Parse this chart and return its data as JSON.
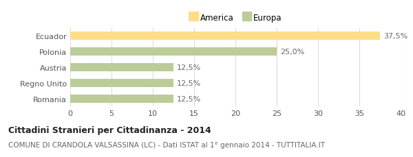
{
  "categories": [
    "Ecuador",
    "Polonia",
    "Austria",
    "Regno Unito",
    "Romania"
  ],
  "values": [
    37.5,
    25.0,
    12.5,
    12.5,
    12.5
  ],
  "bar_colors": [
    "#FFDD88",
    "#BBCC99",
    "#BBCC99",
    "#BBCC99",
    "#BBCC99"
  ],
  "value_labels": [
    "37,5%",
    "25,0%",
    "12,5%",
    "12,5%",
    "12,5%"
  ],
  "legend_labels": [
    "America",
    "Europa"
  ],
  "legend_colors": [
    "#FFDD88",
    "#BBCC99"
  ],
  "xlim": [
    0,
    40
  ],
  "xticks": [
    0,
    5,
    10,
    15,
    20,
    25,
    30,
    35,
    40
  ],
  "title": "Cittadini Stranieri per Cittadinanza - 2014",
  "subtitle": "COMUNE DI CRANDOLA VALSASSINA (LC) - Dati ISTAT al 1° gennaio 2014 - TUTTITALIA.IT",
  "title_fontsize": 9,
  "subtitle_fontsize": 7.5,
  "bar_height": 0.55,
  "background_color": "#ffffff",
  "grid_color": "#dddddd",
  "label_fontsize": 8,
  "tick_fontsize": 8
}
